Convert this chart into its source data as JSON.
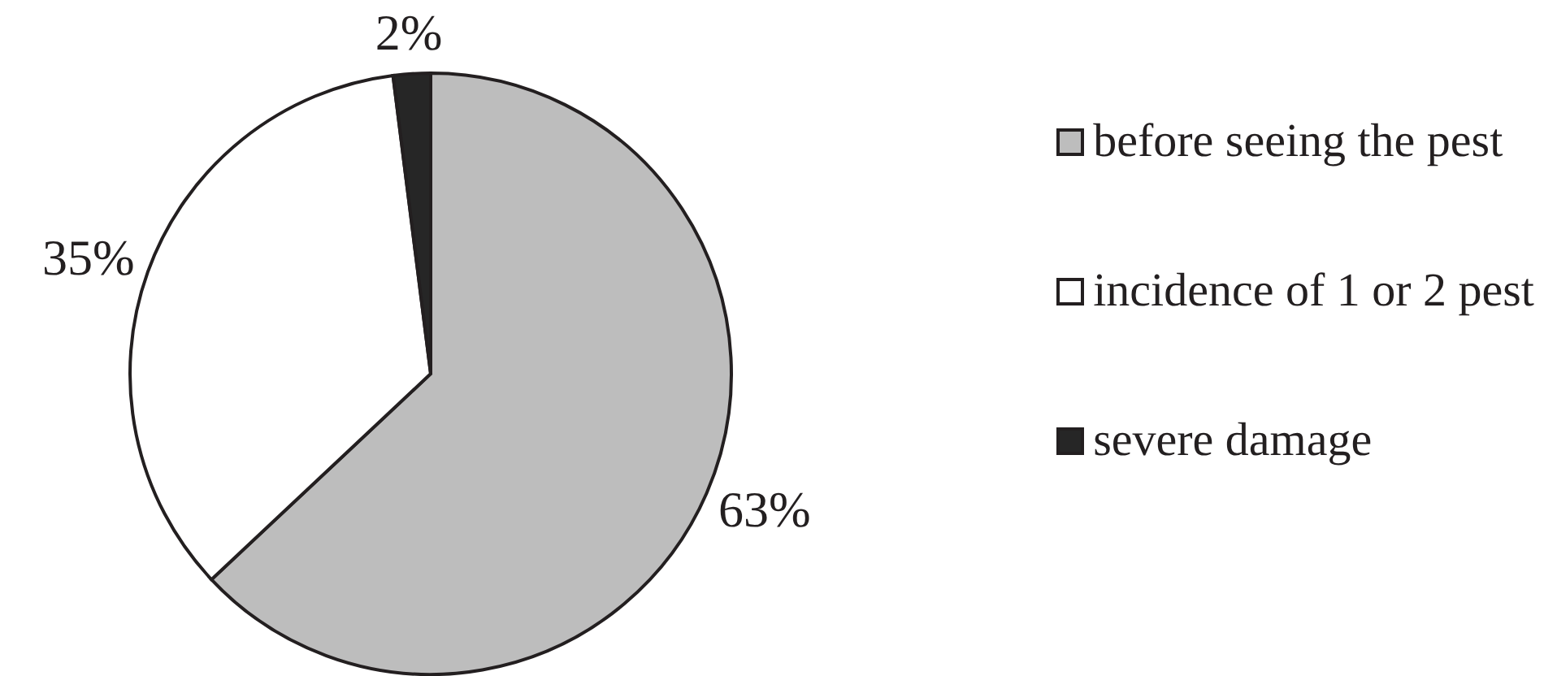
{
  "chart_data": {
    "type": "pie",
    "categories": [
      "before seeing the pest",
      "incidence of 1 or 2 pest",
      "severe damage"
    ],
    "values": [
      63,
      35,
      2
    ],
    "colors": [
      "#bdbdbd",
      "#ffffff",
      "#262626"
    ],
    "value_labels": [
      "63%",
      "35%",
      "2%"
    ],
    "legend": "right"
  }
}
